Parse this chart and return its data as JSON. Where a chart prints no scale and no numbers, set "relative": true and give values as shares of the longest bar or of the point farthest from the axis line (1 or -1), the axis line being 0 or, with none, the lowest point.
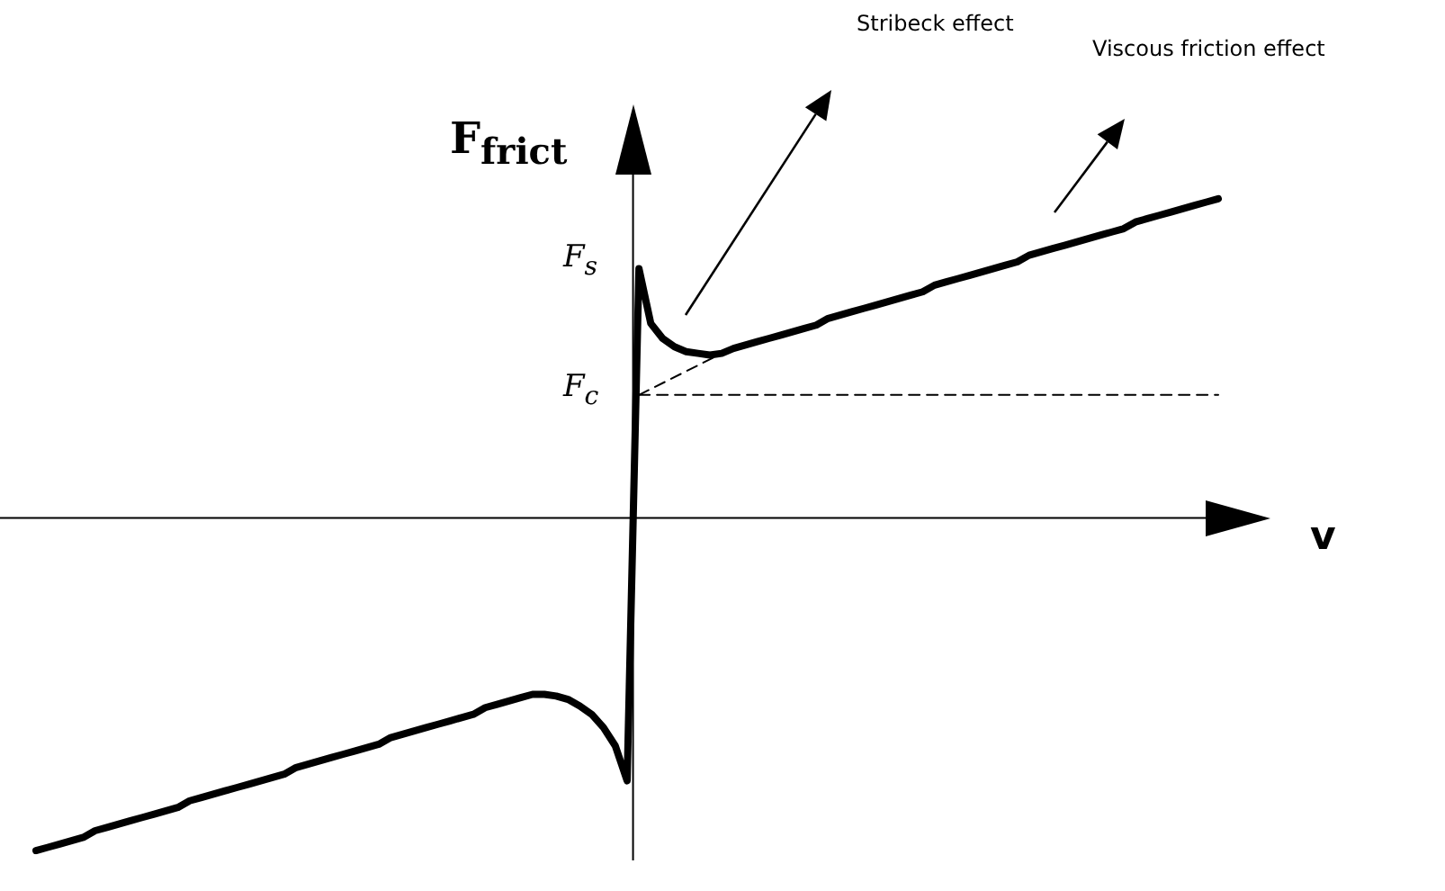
{
  "chart_data": {
    "type": "line",
    "relative": true,
    "xlabel": "v",
    "ylabel": "F$_{frict}$",
    "legend": false,
    "marker": "none",
    "categories": [
      null,
      null,
      null,
      null,
      null,
      null,
      null,
      null,
      null,
      null,
      null,
      null,
      null,
      null,
      null,
      null,
      null,
      null,
      null,
      null,
      null,
      null,
      null,
      null,
      null,
      null,
      null,
      null,
      null,
      null,
      null,
      null,
      null,
      null,
      null,
      null,
      null,
      null,
      null,
      null,
      null,
      null,
      null,
      null,
      null,
      null,
      null,
      null,
      null,
      null,
      null,
      null,
      null,
      null,
      null,
      null,
      null,
      null,
      null,
      null,
      null,
      null,
      null,
      null,
      null,
      null,
      null,
      null,
      null,
      null,
      null,
      null,
      null,
      null,
      null,
      null,
      null,
      null,
      null,
      null,
      null,
      null,
      null,
      null,
      null,
      null,
      null,
      null,
      null,
      null,
      null,
      null,
      null,
      null,
      null,
      null,
      null,
      null,
      null,
      null,
      null
    ],
    "series": [
      {
        "color": "#000000",
        "line_style": "solid",
        "values": [
          -1.0,
          -0.99,
          -0.98,
          -0.97,
          -0.96,
          -0.94,
          -0.93,
          -0.92,
          -0.91,
          -0.9,
          -0.89,
          -0.88,
          -0.87,
          -0.85,
          -0.84,
          -0.83,
          -0.82,
          -0.81,
          -0.8,
          -0.79,
          -0.78,
          -0.77,
          -0.75,
          -0.74,
          -0.73,
          -0.72,
          -0.71,
          -0.7,
          -0.69,
          -0.68,
          -0.66,
          -0.65,
          -0.64,
          -0.63,
          -0.62,
          -0.61,
          -0.6,
          -0.59,
          -0.57,
          -0.56,
          -0.55,
          -0.54,
          -0.53,
          -0.53,
          -0.535,
          -0.545,
          -0.565,
          -0.59,
          -0.63,
          -0.685,
          -0.79,
          0.75,
          0.585,
          0.54,
          0.515,
          0.5,
          0.495,
          0.49,
          0.495,
          0.51,
          0.52,
          0.53,
          0.54,
          0.55,
          0.56,
          0.57,
          0.58,
          0.6,
          0.61,
          0.62,
          0.63,
          0.64,
          0.65,
          0.66,
          0.67,
          0.68,
          0.7,
          0.71,
          0.72,
          0.73,
          0.74,
          0.75,
          0.76,
          0.77,
          0.79,
          0.8,
          0.81,
          0.82,
          0.83,
          0.84,
          0.85,
          0.86,
          0.87,
          0.89,
          0.9,
          0.91,
          0.92,
          0.93,
          0.94,
          0.95,
          0.96
        ]
      },
      {
        "color": "#000000",
        "line_style": "dashed",
        "values": [
          null,
          null,
          null,
          null,
          null,
          null,
          null,
          null,
          null,
          null,
          null,
          null,
          null,
          null,
          null,
          null,
          null,
          null,
          null,
          null,
          null,
          null,
          null,
          null,
          null,
          null,
          null,
          null,
          null,
          null,
          null,
          null,
          null,
          null,
          null,
          null,
          null,
          null,
          null,
          null,
          null,
          null,
          null,
          null,
          null,
          null,
          null,
          null,
          null,
          null,
          null,
          0.37,
          null,
          null,
          null,
          null,
          null,
          null,
          0.495,
          null,
          null,
          null,
          null,
          null,
          null,
          null,
          null,
          null,
          null,
          null,
          null,
          null,
          null,
          null,
          null,
          null,
          null,
          null,
          null,
          null,
          null,
          null,
          null,
          null,
          null,
          null,
          null,
          null,
          null,
          null,
          null,
          null,
          null,
          null,
          null,
          null,
          null,
          null,
          null,
          null,
          null
        ]
      },
      {
        "color": "#000000",
        "line_style": "dashed",
        "values": [
          null,
          null,
          null,
          null,
          null,
          null,
          null,
          null,
          null,
          null,
          null,
          null,
          null,
          null,
          null,
          null,
          null,
          null,
          null,
          null,
          null,
          null,
          null,
          null,
          null,
          null,
          null,
          null,
          null,
          null,
          null,
          null,
          null,
          null,
          null,
          null,
          null,
          null,
          null,
          null,
          null,
          null,
          null,
          null,
          null,
          null,
          null,
          null,
          null,
          null,
          null,
          0.37,
          null,
          null,
          null,
          null,
          null,
          null,
          null,
          null,
          null,
          null,
          null,
          null,
          null,
          null,
          null,
          null,
          null,
          null,
          null,
          null,
          null,
          null,
          null,
          null,
          null,
          null,
          null,
          null,
          null,
          null,
          null,
          null,
          null,
          null,
          null,
          null,
          null,
          null,
          null,
          null,
          null,
          null,
          null,
          null,
          null,
          null,
          null,
          null,
          0.37
        ]
      }
    ],
    "annotations": [
      "F$_{s}$",
      "F$_{c}$",
      "Stribeck effect",
      "Viscous friction effect"
    ]
  }
}
